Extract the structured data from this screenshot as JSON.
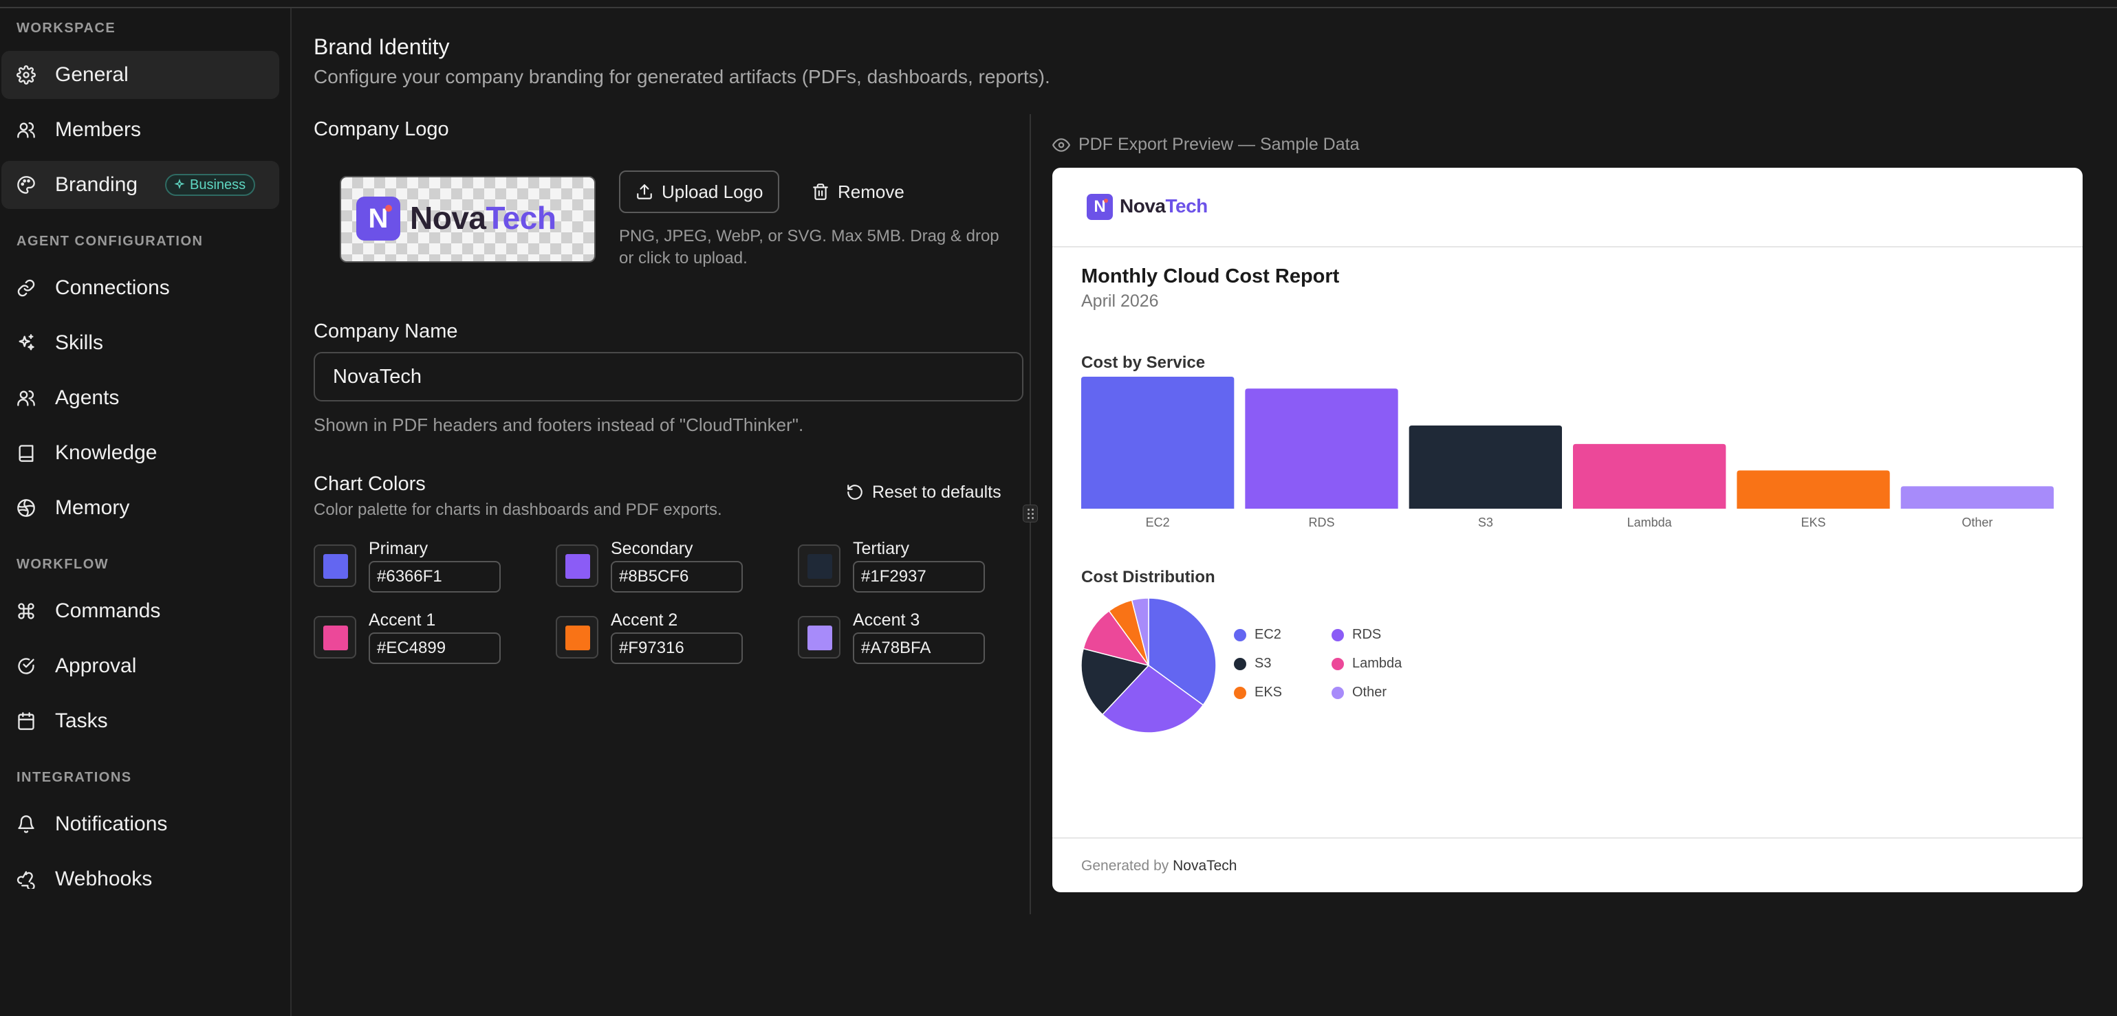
{
  "sidebar": {
    "sections": [
      {
        "label": "WORKSPACE"
      },
      {
        "label": "AGENT CONFIGURATION"
      },
      {
        "label": "WORKFLOW"
      },
      {
        "label": "INTEGRATIONS"
      }
    ],
    "items": [
      {
        "label": "General",
        "icon": "gear-icon"
      },
      {
        "label": "Members",
        "icon": "users-icon"
      },
      {
        "label": "Branding",
        "icon": "palette-icon",
        "badge": "Business"
      },
      {
        "label": "Connections",
        "icon": "link-icon"
      },
      {
        "label": "Skills",
        "icon": "sparkles-icon"
      },
      {
        "label": "Agents",
        "icon": "users-icon"
      },
      {
        "label": "Knowledge",
        "icon": "book-icon"
      },
      {
        "label": "Memory",
        "icon": "brain-icon"
      },
      {
        "label": "Commands",
        "icon": "command-icon"
      },
      {
        "label": "Approval",
        "icon": "check-circle-icon"
      },
      {
        "label": "Tasks",
        "icon": "calendar-icon"
      },
      {
        "label": "Notifications",
        "icon": "bell-icon"
      },
      {
        "label": "Webhooks",
        "icon": "webhook-icon"
      }
    ]
  },
  "page": {
    "title": "Brand Identity",
    "subtitle": "Configure your company branding for generated artifacts (PDFs, dashboards, reports)."
  },
  "logo": {
    "label": "Company Logo",
    "upload_label": "Upload Logo",
    "remove_label": "Remove",
    "help": "PNG, JPEG, WebP, or SVG. Max 5MB. Drag & drop or click to upload.",
    "word_nova": "Nova",
    "word_tech": "Tech",
    "mark": "N"
  },
  "company": {
    "label": "Company Name",
    "value": "NovaTech",
    "help": "Shown in PDF headers and footers instead of \"CloudThinker\"."
  },
  "chart_colors": {
    "label": "Chart Colors",
    "help": "Color palette for charts in dashboards and PDF exports.",
    "reset_label": "Reset to defaults",
    "swatches": [
      {
        "name": "Primary",
        "hex": "#6366F1"
      },
      {
        "name": "Secondary",
        "hex": "#8B5CF6"
      },
      {
        "name": "Tertiary",
        "hex": "#1F2937"
      },
      {
        "name": "Accent 1",
        "hex": "#EC4899"
      },
      {
        "name": "Accent 2",
        "hex": "#F97316"
      },
      {
        "name": "Accent 3",
        "hex": "#A78BFA"
      }
    ]
  },
  "preview": {
    "label": "PDF Export Preview — Sample Data",
    "brand_nova": "Nova",
    "brand_tech": "Tech",
    "brand_mark": "N",
    "report_title": "Monthly Cloud Cost Report",
    "report_date": "April 2026",
    "bar_title": "Cost by Service",
    "pie_title": "Cost Distribution",
    "footer_prefix": "Generated by ",
    "footer_company": "NovaTech"
  },
  "chart_data": [
    {
      "type": "bar",
      "title": "Cost by Service",
      "categories": [
        "EC2",
        "RDS",
        "S3",
        "Lambda",
        "EKS",
        "Other"
      ],
      "values": [
        100,
        91,
        63,
        49,
        29,
        17
      ],
      "colors": [
        "#6366F1",
        "#8B5CF6",
        "#1F2937",
        "#EC4899",
        "#F97316",
        "#A78BFA"
      ],
      "grid": false
    },
    {
      "type": "pie",
      "title": "Cost Distribution",
      "categories": [
        "EC2",
        "RDS",
        "S3",
        "Lambda",
        "EKS",
        "Other"
      ],
      "values": [
        35,
        27,
        17,
        11,
        6,
        4
      ],
      "colors": [
        "#6366F1",
        "#8B5CF6",
        "#1F2937",
        "#EC4899",
        "#F97316",
        "#A78BFA"
      ],
      "legend": "right"
    }
  ]
}
